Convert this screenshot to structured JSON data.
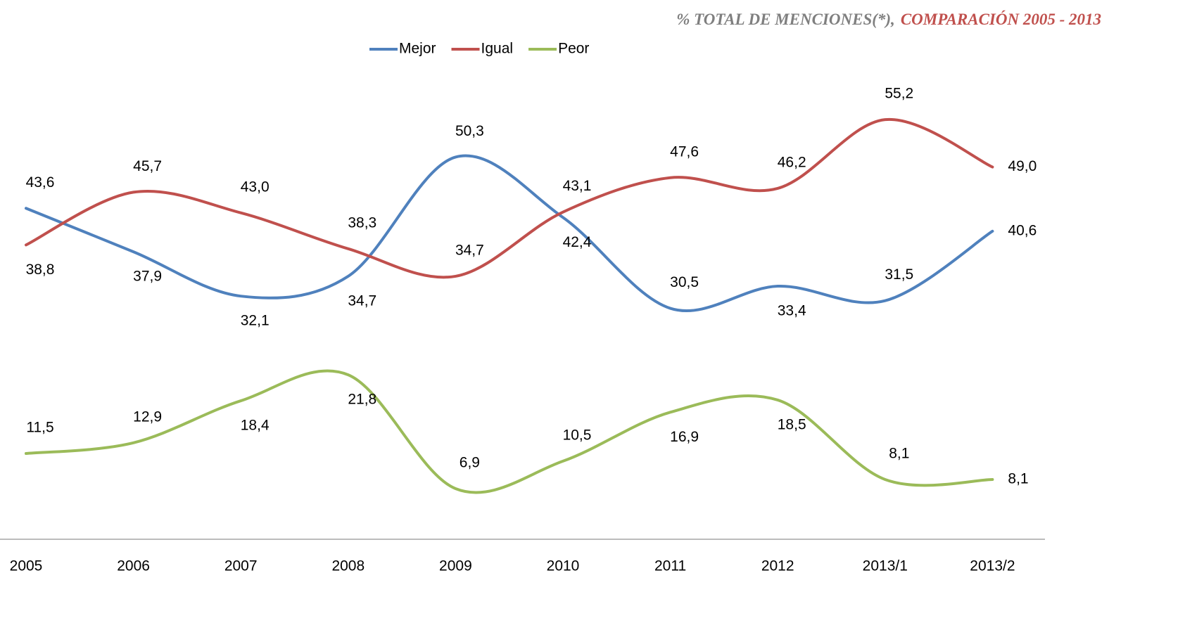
{
  "chart_data": {
    "type": "line",
    "title": "% TOTAL DE MENCIONES(*),",
    "subtitle": "COMPARACIÓN 2005  - 2013",
    "categories": [
      "2005",
      "2006",
      "2007",
      "2008",
      "2009",
      "2010",
      "2011",
      "2012",
      "2013/1",
      "2013/2"
    ],
    "series": [
      {
        "name": "Mejor",
        "color": "#4f81bd",
        "values": [
          43.6,
          37.9,
          32.1,
          34.7,
          50.3,
          42.4,
          30.5,
          33.4,
          31.5,
          40.6
        ],
        "value_labels": [
          "43,6",
          "37,9",
          "32,1",
          "34,7",
          "50,3",
          "42,4",
          "30,5",
          "33,4",
          "31,5",
          "40,6"
        ]
      },
      {
        "name": "Igual",
        "color": "#c0504d",
        "values": [
          38.8,
          45.7,
          43.0,
          38.3,
          34.7,
          43.1,
          47.6,
          46.2,
          55.2,
          49.0
        ],
        "value_labels": [
          "38,8",
          "45,7",
          "43,0",
          "38,3",
          "34,7",
          "43,1",
          "47,6",
          "46,2",
          "55,2",
          "49,0"
        ]
      },
      {
        "name": "Peor",
        "color": "#9bbb59",
        "values": [
          11.5,
          12.9,
          18.4,
          21.8,
          6.9,
          10.5,
          16.9,
          18.5,
          8.1,
          8.1
        ],
        "value_labels": [
          "11,5",
          "12,9",
          "18,4",
          "21,8",
          "6,9",
          "10,5",
          "16,9",
          "18,5",
          "8,1",
          "8,1"
        ]
      }
    ],
    "ylim": [
      0,
      60
    ],
    "legend": "top"
  }
}
